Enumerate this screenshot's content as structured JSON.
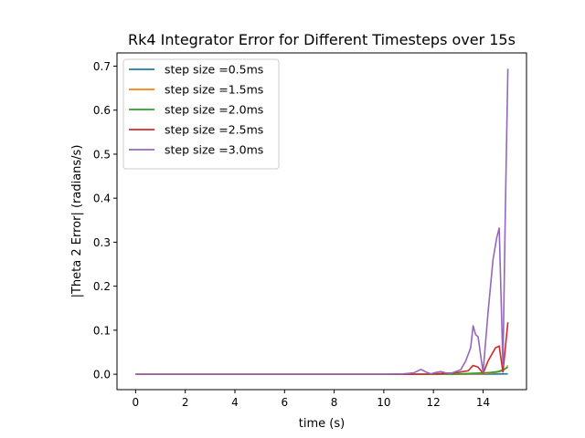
{
  "chart_data": {
    "type": "line",
    "title": "Rk4 Integrator Error for Different Timesteps over 15s",
    "xlabel": "time (s)",
    "ylabel": "|Theta 2 Error| (radians/s)",
    "xlim": [
      -0.75,
      15.75
    ],
    "ylim": [
      -0.035,
      0.73
    ],
    "xticks": [
      0,
      2,
      4,
      6,
      8,
      10,
      12,
      14
    ],
    "xtick_labels": [
      "0",
      "2",
      "4",
      "6",
      "8",
      "10",
      "12",
      "14"
    ],
    "yticks": [
      0.0,
      0.1,
      0.2,
      0.3,
      0.4,
      0.5,
      0.6,
      0.7
    ],
    "ytick_labels": [
      "0.0",
      "0.1",
      "0.2",
      "0.3",
      "0.4",
      "0.5",
      "0.6",
      "0.7"
    ],
    "legend_position": "top-left",
    "series": [
      {
        "name": "step size =0.5ms",
        "color": "#1f77b4",
        "x": [
          0,
          2,
          4,
          6,
          8,
          10,
          12,
          13,
          14,
          14.5,
          14.8,
          15.0
        ],
        "y": [
          0,
          0,
          0,
          0,
          0,
          0,
          0,
          0,
          0,
          0.0003,
          0.0006,
          0.0008
        ]
      },
      {
        "name": "step size =1.5ms",
        "color": "#ff7f0e",
        "x": [
          0,
          2,
          4,
          6,
          8,
          10,
          12,
          13,
          13.6,
          14.0,
          14.4,
          14.7,
          14.9,
          15.0
        ],
        "y": [
          0,
          0,
          0,
          0,
          0,
          0,
          0,
          0.0002,
          0.0008,
          0.0012,
          0.003,
          0.006,
          0.012,
          0.02
        ]
      },
      {
        "name": "step size =2.0ms",
        "color": "#2ca02c",
        "x": [
          0,
          2,
          4,
          6,
          8,
          10,
          12,
          13,
          13.5,
          14.0,
          14.3,
          14.6,
          14.8,
          15.0
        ],
        "y": [
          0,
          0,
          0,
          0,
          0,
          0,
          0,
          0.0005,
          0.002,
          0.003,
          0.004,
          0.006,
          0.01,
          0.016
        ]
      },
      {
        "name": "step size =2.5ms",
        "color": "#d62728",
        "x": [
          0,
          2,
          4,
          6,
          8,
          10,
          11,
          12,
          12.4,
          12.8,
          13.0,
          13.4,
          13.6,
          13.8,
          14.0,
          14.2,
          14.5,
          14.65,
          14.8,
          15.0
        ],
        "y": [
          0,
          0,
          0,
          0,
          0,
          0,
          0,
          0.0005,
          0.002,
          0.003,
          0.004,
          0.008,
          0.02,
          0.016,
          0.002,
          0.03,
          0.06,
          0.064,
          0.005,
          0.118
        ]
      },
      {
        "name": "step size =3.0ms",
        "color": "#9467bd",
        "x": [
          0,
          2,
          4,
          6,
          8,
          10,
          10.8,
          11.2,
          11.5,
          11.7,
          11.9,
          12.1,
          12.3,
          12.5,
          12.7,
          12.9,
          13.1,
          13.3,
          13.5,
          13.6,
          13.7,
          13.8,
          14.0,
          14.2,
          14.4,
          14.55,
          14.65,
          14.8,
          14.9,
          15.0
        ],
        "y": [
          0,
          0,
          0,
          0,
          0,
          0,
          0.001,
          0.003,
          0.011,
          0.005,
          0.001,
          0.004,
          0.006,
          0.003,
          0.002,
          0.006,
          0.01,
          0.03,
          0.06,
          0.11,
          0.09,
          0.085,
          0.004,
          0.14,
          0.26,
          0.31,
          0.332,
          0.02,
          0.38,
          0.694
        ]
      }
    ]
  }
}
